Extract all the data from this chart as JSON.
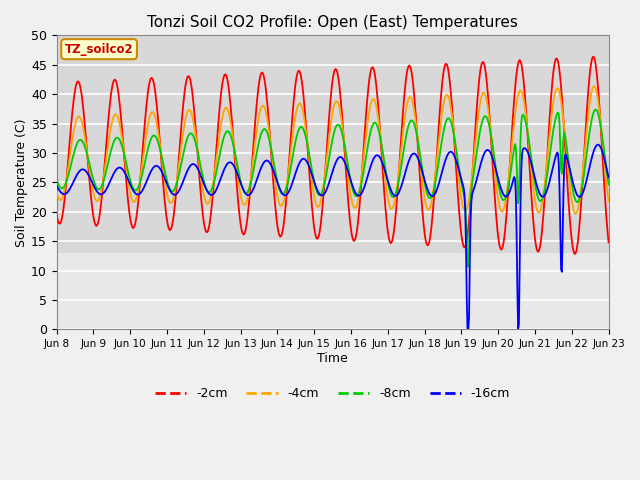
{
  "title": "Tonzi Soil CO2 Profile: Open (East) Temperatures",
  "xlabel": "Time",
  "ylabel": "Soil Temperature (C)",
  "ylim": [
    0,
    50
  ],
  "colors": {
    "-2cm": "#ff0000",
    "-4cm": "#ffa500",
    "-8cm": "#00cc00",
    "-16cm": "#0000ff"
  },
  "legend_label": "TZ_soilco2",
  "bg_upper": "#d8d8d8",
  "bg_lower": "#e8e8e8",
  "grid_color": "#ffffff",
  "tick_labels": [
    "Jun 8",
    "Jun 9",
    "Jun 10",
    "Jun 11",
    "Jun 12",
    "Jun 13",
    "Jun 14",
    "Jun 15",
    "Jun 16",
    "Jun 17",
    "Jun 18",
    "Jun 19",
    "Jun 20",
    "Jun 21",
    "Jun 22",
    "Jun 23"
  ],
  "start_day": 8,
  "end_day": 23
}
